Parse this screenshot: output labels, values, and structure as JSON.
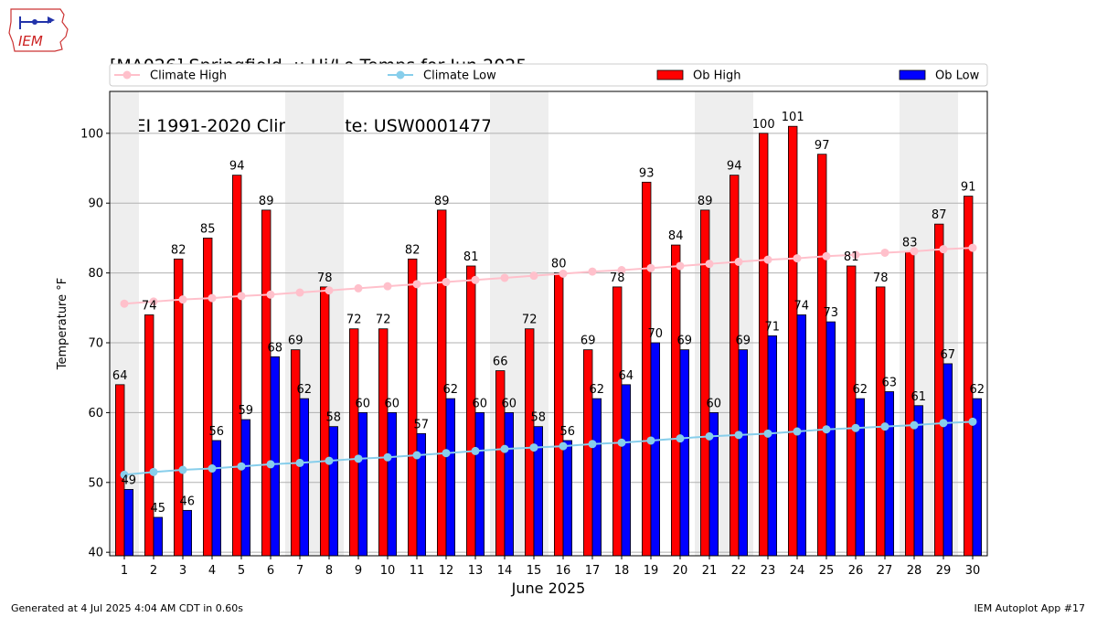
{
  "header": {
    "logo_text": "IEM",
    "title_line1": "[MA026] Springfield  :: Hi/Lo Temps for Jun 2025",
    "title_line2": "NCEI 1991-2020 Climate Site: USW00014775"
  },
  "footer": {
    "generated": "Generated at 4 Jul 2025 4:04 AM CDT in 0.60s",
    "app": "IEM Autoplot App #17"
  },
  "colors": {
    "ob_high": "#ff0000",
    "ob_low": "#0000ff",
    "climate_high": "#ffc0cb",
    "climate_low": "#87ceeb",
    "weekend_shade": "#eeeeee"
  },
  "chart_data": {
    "type": "bar",
    "xlabel": "June 2025",
    "ylabel": "Temperature °F",
    "ylim": [
      39.5,
      106
    ],
    "yticks": [
      40,
      50,
      60,
      70,
      80,
      90,
      100
    ],
    "grid": true,
    "legend": "top, horizontal",
    "categories": [
      "1",
      "2",
      "3",
      "4",
      "5",
      "6",
      "7",
      "8",
      "9",
      "10",
      "11",
      "12",
      "13",
      "14",
      "15",
      "16",
      "17",
      "18",
      "19",
      "20",
      "21",
      "22",
      "23",
      "24",
      "25",
      "26",
      "27",
      "28",
      "29",
      "30"
    ],
    "shaded_days": [
      1,
      7,
      8,
      14,
      15,
      21,
      22,
      28,
      29
    ],
    "series": [
      {
        "name": "Climate High",
        "kind": "line",
        "values": [
          75.6,
          75.9,
          76.2,
          76.4,
          76.7,
          76.9,
          77.2,
          77.5,
          77.8,
          78.1,
          78.4,
          78.7,
          79.0,
          79.3,
          79.6,
          79.9,
          80.2,
          80.4,
          80.7,
          81.0,
          81.3,
          81.6,
          81.9,
          82.1,
          82.4,
          82.6,
          82.9,
          83.1,
          83.4,
          83.6
        ]
      },
      {
        "name": "Climate Low",
        "kind": "line",
        "values": [
          51.1,
          51.5,
          51.8,
          52.0,
          52.3,
          52.6,
          52.8,
          53.1,
          53.4,
          53.6,
          53.9,
          54.2,
          54.5,
          54.8,
          55.0,
          55.2,
          55.5,
          55.7,
          56.0,
          56.3,
          56.6,
          56.8,
          57.0,
          57.3,
          57.6,
          57.8,
          58.0,
          58.2,
          58.5,
          58.7
        ]
      },
      {
        "name": "Ob High",
        "kind": "bar",
        "values": [
          64,
          74,
          82,
          85,
          94,
          89,
          69,
          78,
          72,
          72,
          82,
          89,
          81,
          66,
          72,
          80,
          69,
          78,
          93,
          84,
          89,
          94,
          100,
          101,
          97,
          81,
          78,
          83,
          87,
          91
        ]
      },
      {
        "name": "Ob Low",
        "kind": "bar",
        "values": [
          49,
          45,
          46,
          56,
          59,
          68,
          62,
          58,
          60,
          60,
          57,
          62,
          60,
          60,
          58,
          56,
          62,
          64,
          70,
          69,
          60,
          69,
          71,
          74,
          73,
          62,
          63,
          61,
          67,
          62
        ]
      }
    ]
  }
}
